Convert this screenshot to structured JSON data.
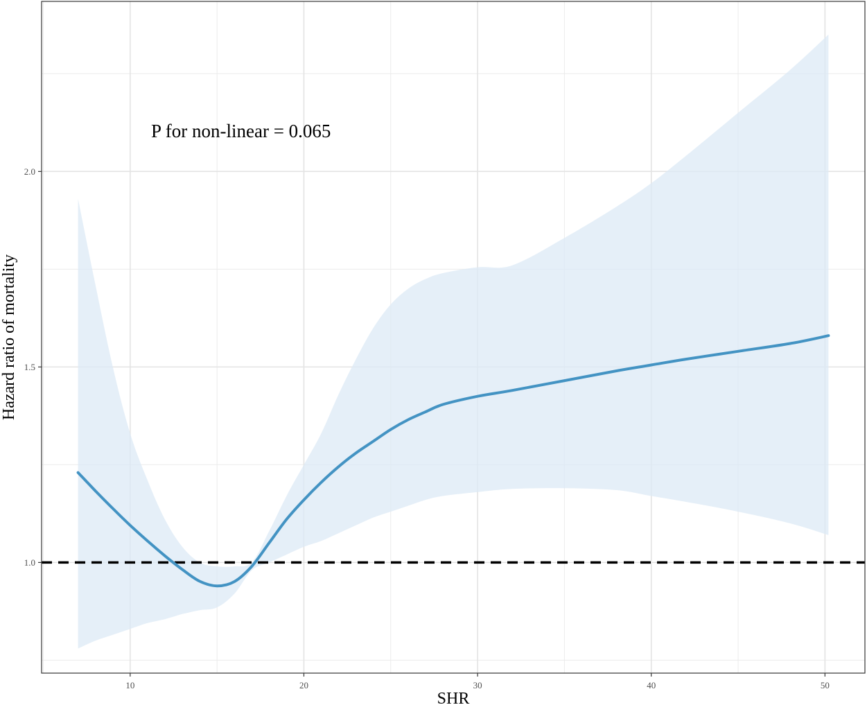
{
  "chart_data": {
    "type": "line",
    "xlabel": "SHR",
    "ylabel": "Hazard ratio of mortality",
    "annotation": "P for non-linear = 0.065",
    "xlim": [
      4.9,
      52.3
    ],
    "ylim": [
      0.717,
      2.435
    ],
    "x_ticks": [
      10,
      20,
      30,
      40,
      50
    ],
    "x_tick_labels": [
      "10",
      "20",
      "30",
      "40",
      "50"
    ],
    "y_ticks": [
      1.0,
      1.5,
      2.0
    ],
    "y_tick_labels": [
      "1.0",
      "1.5",
      "2.0"
    ],
    "grid": true,
    "reference_line": {
      "y": 1.0,
      "style": "dashed",
      "color": "#000000"
    },
    "series": [
      {
        "color": "#4393C3",
        "band_color": "#DCEAF6",
        "x": [
          7.0,
          8.0,
          9.0,
          10.0,
          11.0,
          12.0,
          13.0,
          14.0,
          15.0,
          16.0,
          17.0,
          18.0,
          19.0,
          20.0,
          21.0,
          22.0,
          23.0,
          24.0,
          25.0,
          26.0,
          27.0,
          28.0,
          30.0,
          32.0,
          35.0,
          38.0,
          40.0,
          42.0,
          45.0,
          48.0,
          50.2
        ],
        "y": [
          1.23,
          1.183,
          1.138,
          1.095,
          1.055,
          1.017,
          0.982,
          0.952,
          0.94,
          0.951,
          0.99,
          1.05,
          1.11,
          1.16,
          1.205,
          1.245,
          1.28,
          1.31,
          1.34,
          1.365,
          1.385,
          1.404,
          1.425,
          1.44,
          1.465,
          1.49,
          1.505,
          1.52,
          1.54,
          1.56,
          1.58
        ],
        "lower": [
          0.78,
          0.8,
          0.815,
          0.83,
          0.845,
          0.855,
          0.868,
          0.878,
          0.885,
          0.92,
          0.98,
          1.0,
          1.02,
          1.04,
          1.055,
          1.075,
          1.095,
          1.115,
          1.13,
          1.145,
          1.16,
          1.17,
          1.18,
          1.188,
          1.19,
          1.185,
          1.17,
          1.155,
          1.13,
          1.1,
          1.07
        ],
        "upper": [
          1.93,
          1.71,
          1.5,
          1.33,
          1.21,
          1.11,
          1.04,
          1.0,
          0.99,
          0.99,
          1.0,
          1.08,
          1.17,
          1.25,
          1.33,
          1.43,
          1.52,
          1.6,
          1.66,
          1.7,
          1.725,
          1.74,
          1.755,
          1.76,
          1.83,
          1.91,
          1.97,
          2.04,
          2.15,
          2.26,
          2.35
        ]
      }
    ]
  }
}
